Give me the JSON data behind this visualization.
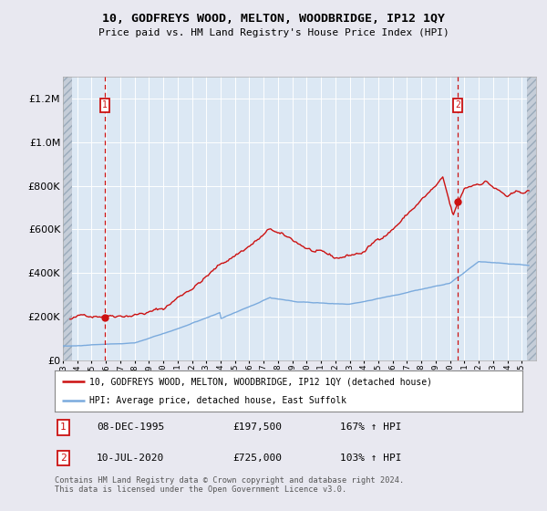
{
  "title": "10, GODFREYS WOOD, MELTON, WOODBRIDGE, IP12 1QY",
  "subtitle": "Price paid vs. HM Land Registry's House Price Index (HPI)",
  "legend_line1": "10, GODFREYS WOOD, MELTON, WOODBRIDGE, IP12 1QY (detached house)",
  "legend_line2": "HPI: Average price, detached house, East Suffolk",
  "sale1_date": "08-DEC-1995",
  "sale1_price": "£197,500",
  "sale1_hpi": "167% ↑ HPI",
  "sale1_x": 1995.93,
  "sale1_y": 197500,
  "sale2_date": "10-JUL-2020",
  "sale2_price": "£725,000",
  "sale2_hpi": "103% ↑ HPI",
  "sale2_x": 2020.53,
  "sale2_y": 725000,
  "hpi_color": "#7aaadd",
  "price_color": "#cc1111",
  "bg_color": "#e8e8f0",
  "plot_bg": "#dce8f4",
  "copyright": "Contains HM Land Registry data © Crown copyright and database right 2024.\nThis data is licensed under the Open Government Licence v3.0.",
  "ylim": [
    0,
    1300000
  ],
  "xlim_start": 1993,
  "xlim_end": 2026
}
